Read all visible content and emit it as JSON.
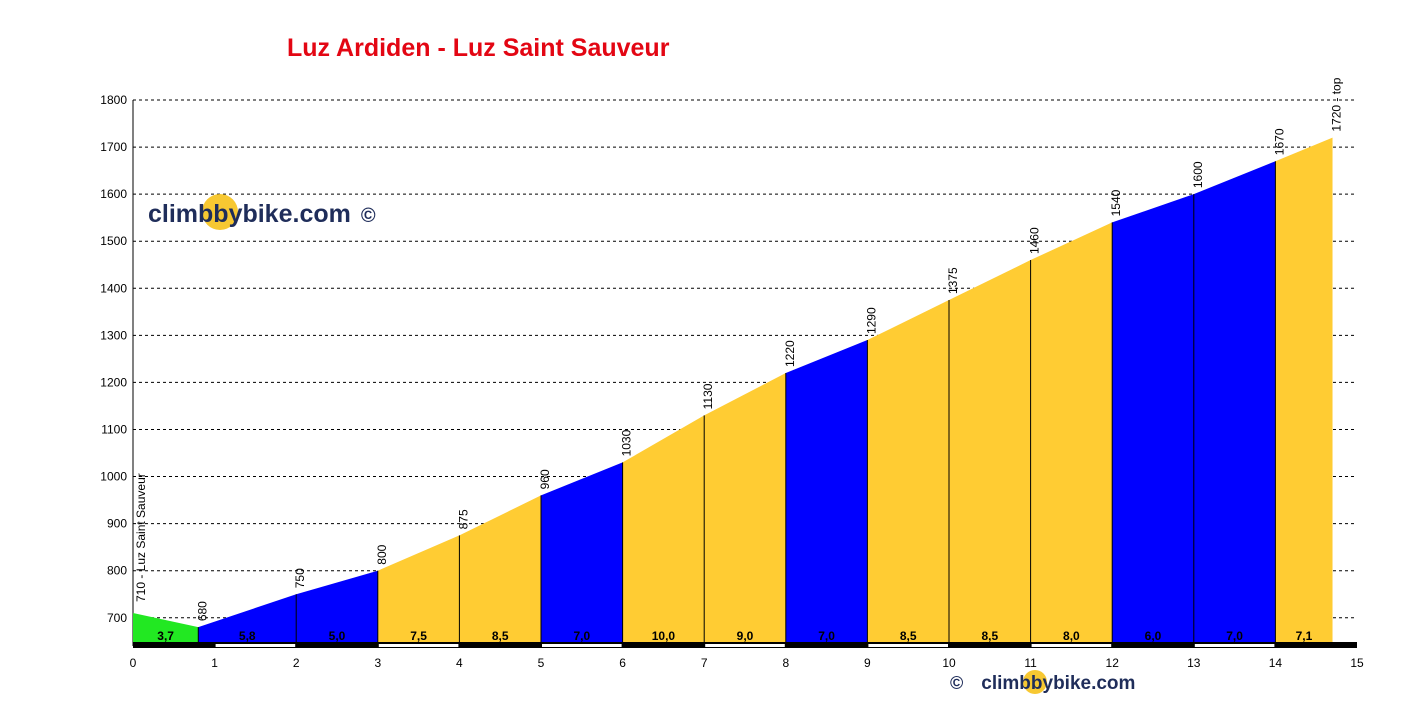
{
  "title": "Luz Ardiden - Luz Saint Sauveur",
  "watermark": {
    "brand": "climbbybike.com",
    "copyright": "©"
  },
  "colors": {
    "title": "#e30613",
    "easy": "#22e822",
    "medium": "#0000ff",
    "hard": "#ffcc33",
    "grid": "#000000",
    "text": "#000000"
  },
  "chart_data": {
    "type": "area",
    "title": "Luz Ardiden - Luz Saint Sauveur",
    "xlabel": "",
    "ylabel": "",
    "xlim": [
      0,
      15
    ],
    "ylim": [
      640,
      1800
    ],
    "x_ticks": [
      0,
      1,
      2,
      3,
      4,
      5,
      6,
      7,
      8,
      9,
      10,
      11,
      12,
      13,
      14,
      15
    ],
    "y_ticks": [
      700,
      800,
      900,
      1000,
      1100,
      1200,
      1300,
      1400,
      1500,
      1600,
      1700,
      1800
    ],
    "grid": "horizontal dashed",
    "points": [
      {
        "x": 0,
        "y": 710,
        "label": "710 - Luz Saint Sauveur"
      },
      {
        "x": 0.8,
        "y": 680,
        "label": "680"
      },
      {
        "x": 2,
        "y": 750,
        "label": "750"
      },
      {
        "x": 3,
        "y": 800,
        "label": "800"
      },
      {
        "x": 4,
        "y": 875,
        "label": "875"
      },
      {
        "x": 5,
        "y": 960,
        "label": "960"
      },
      {
        "x": 6,
        "y": 1030,
        "label": "1030"
      },
      {
        "x": 7,
        "y": 1130,
        "label": "1130"
      },
      {
        "x": 8,
        "y": 1220,
        "label": "1220"
      },
      {
        "x": 9,
        "y": 1290,
        "label": "1290"
      },
      {
        "x": 10,
        "y": 1375,
        "label": "1375"
      },
      {
        "x": 11,
        "y": 1460,
        "label": "1460"
      },
      {
        "x": 12,
        "y": 1540,
        "label": "1540"
      },
      {
        "x": 13,
        "y": 1600,
        "label": "1600"
      },
      {
        "x": 14,
        "y": 1670,
        "label": "1670"
      },
      {
        "x": 14.7,
        "y": 1720,
        "label": "1720 - top"
      }
    ],
    "segments": [
      {
        "from": 0,
        "to": 0.8,
        "gradient": "3,7",
        "color": "easy"
      },
      {
        "from": 0.8,
        "to": 2,
        "gradient": "5,8",
        "color": "medium"
      },
      {
        "from": 2,
        "to": 3,
        "gradient": "5,0",
        "color": "medium"
      },
      {
        "from": 3,
        "to": 4,
        "gradient": "7,5",
        "color": "hard"
      },
      {
        "from": 4,
        "to": 5,
        "gradient": "8,5",
        "color": "hard"
      },
      {
        "from": 5,
        "to": 6,
        "gradient": "7,0",
        "color": "medium"
      },
      {
        "from": 6,
        "to": 7,
        "gradient": "10,0",
        "color": "hard"
      },
      {
        "from": 7,
        "to": 8,
        "gradient": "9,0",
        "color": "hard"
      },
      {
        "from": 8,
        "to": 9,
        "gradient": "7,0",
        "color": "medium"
      },
      {
        "from": 9,
        "to": 10,
        "gradient": "8,5",
        "color": "hard"
      },
      {
        "from": 10,
        "to": 11,
        "gradient": "8,5",
        "color": "hard"
      },
      {
        "from": 11,
        "to": 12,
        "gradient": "8,0",
        "color": "hard"
      },
      {
        "from": 12,
        "to": 13,
        "gradient": "6,0",
        "color": "medium"
      },
      {
        "from": 13,
        "to": 14,
        "gradient": "7,0",
        "color": "medium"
      },
      {
        "from": 14,
        "to": 14.7,
        "gradient": "7,1",
        "color": "hard"
      }
    ]
  }
}
